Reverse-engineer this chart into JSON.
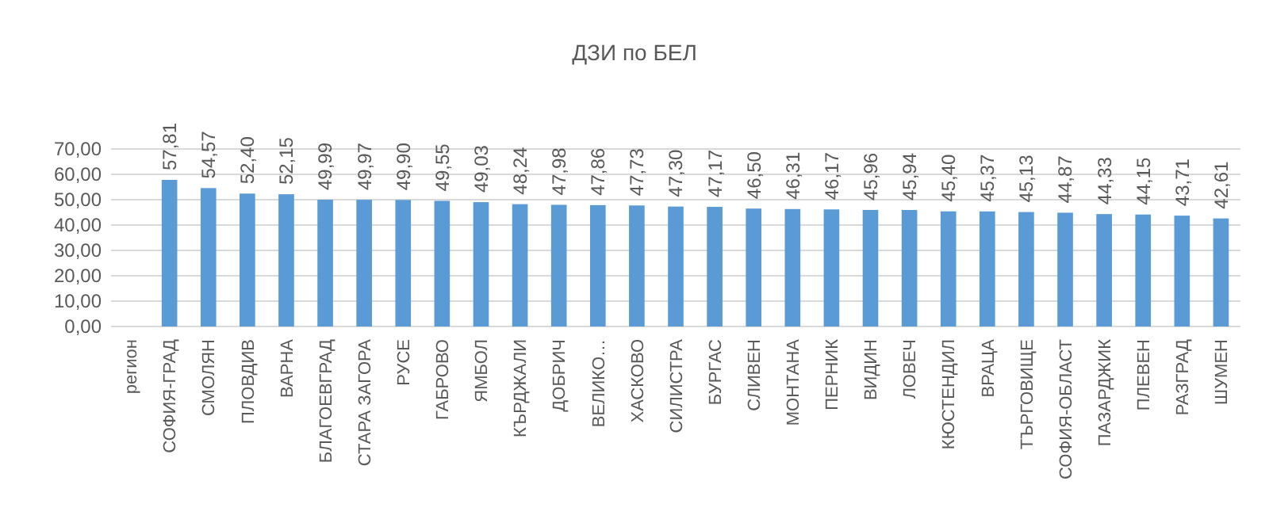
{
  "chart_data": {
    "type": "bar",
    "title": "ДЗИ по БЕЛ",
    "categories": [
      "регион",
      "СОФИЯ-ГРАД",
      "СМОЛЯН",
      "ПЛОВДИВ",
      "ВАРНА",
      "БЛАГОЕВГРАД",
      "СТАРА ЗАГОРА",
      "РУСЕ",
      "ГАБРОВО",
      "ЯМБОЛ",
      "КЪРДЖАЛИ",
      "ДОБРИЧ",
      "ВЕЛИКО…",
      "ХАСКОВО",
      "СИЛИСТРА",
      "БУРГАС",
      "СЛИВЕН",
      "МОНТАНА",
      "ПЕРНИК",
      "ВИДИН",
      "ЛОВЕЧ",
      "КЮСТЕНДИЛ",
      "ВРАЦА",
      "ТЪРГОВИЩЕ",
      "СОФИЯ-ОБЛАСТ",
      "ПАЗАРДЖИК",
      "ПЛЕВЕН",
      "РАЗГРАД",
      "ШУМЕН"
    ],
    "values": [
      null,
      57.81,
      54.57,
      52.4,
      52.15,
      49.99,
      49.97,
      49.9,
      49.55,
      49.03,
      48.24,
      47.98,
      47.86,
      47.73,
      47.3,
      47.17,
      46.5,
      46.31,
      46.17,
      45.96,
      45.94,
      45.4,
      45.37,
      45.13,
      44.87,
      44.33,
      44.15,
      43.71,
      42.61
    ],
    "value_labels": [
      null,
      "57,81",
      "54,57",
      "52,40",
      "52,15",
      "49,99",
      "49,97",
      "49,90",
      "49,55",
      "49,03",
      "48,24",
      "47,98",
      "47,86",
      "47,73",
      "47,30",
      "47,17",
      "46,50",
      "46,31",
      "46,17",
      "45,96",
      "45,94",
      "45,40",
      "45,37",
      "45,13",
      "44,87",
      "44,33",
      "44,15",
      "43,71",
      "42,61"
    ],
    "color": "#5b9bd5",
    "ylim": [
      0,
      70
    ],
    "yticks": [
      {
        "value": 0,
        "label": "0,00"
      },
      {
        "value": 10,
        "label": "10,00"
      },
      {
        "value": 20,
        "label": "20,00"
      },
      {
        "value": 30,
        "label": "30,00"
      },
      {
        "value": 40,
        "label": "40,00"
      },
      {
        "value": 50,
        "label": "50,00"
      },
      {
        "value": 60,
        "label": "60,00"
      },
      {
        "value": 70,
        "label": "70,00"
      }
    ],
    "grid": "y"
  }
}
